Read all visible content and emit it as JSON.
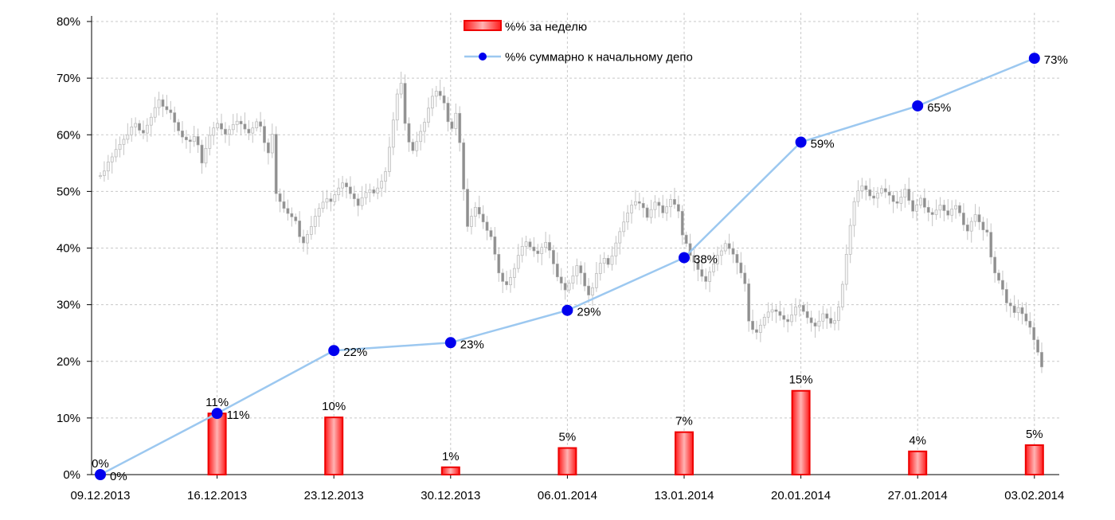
{
  "chart_data": {
    "type": "bar+line",
    "categories": [
      "09.12.2013",
      "16.12.2013",
      "23.12.2013",
      "30.12.2013",
      "06.01.2014",
      "13.01.2014",
      "20.01.2014",
      "27.01.2014",
      "03.02.2014"
    ],
    "ylim": [
      0,
      80
    ],
    "yticks": [
      0,
      10,
      20,
      30,
      40,
      50,
      60,
      70,
      80
    ],
    "ytick_labels": [
      "0%",
      "10%",
      "20%",
      "30%",
      "40%",
      "50%",
      "60%",
      "70%",
      "80%"
    ],
    "grid": true,
    "legend_position": "top-center",
    "series": [
      {
        "name": "%% за неделю",
        "type": "bar",
        "color": "#ff0000",
        "values": [
          0,
          11,
          10,
          1,
          5,
          7,
          15,
          4,
          5
        ],
        "plot_values": [
          0,
          10.8,
          10.1,
          1.3,
          4.7,
          7.5,
          14.8,
          4.1,
          5.2
        ],
        "labels": [
          "0%",
          "11%",
          "10%",
          "1%",
          "5%",
          "7%",
          "15%",
          "4%",
          "5%"
        ]
      },
      {
        "name": "%% суммарно к начальному депо",
        "type": "line",
        "color": "#0000ee",
        "line_color": "#9cc8f0",
        "values": [
          0,
          11,
          22,
          23,
          29,
          38,
          59,
          65,
          73
        ],
        "plot_values": [
          0,
          10.8,
          21.9,
          23.3,
          29.0,
          38.3,
          58.7,
          65.1,
          73.5
        ],
        "labels": [
          "0%",
          "11%",
          "22%",
          "23%",
          "29%",
          "38%",
          "59%",
          "65%",
          "73%"
        ]
      }
    ],
    "background_candles": {
      "description_free": true,
      "closes": [
        52.8,
        53.6,
        55.2,
        56.1,
        57.4,
        58.3,
        59.2,
        60.0,
        61.4,
        62.0,
        60.8,
        60.3,
        61.7,
        63.1,
        64.8,
        66.2,
        65.0,
        64.4,
        63.9,
        62.2,
        60.7,
        59.6,
        59.1,
        58.8,
        59.7,
        58.2,
        55.0,
        57.6,
        59.9,
        61.2,
        62.0,
        61.0,
        60.1,
        60.9,
        61.8,
        62.4,
        61.9,
        61.0,
        60.3,
        61.2,
        62.3,
        61.5,
        58.6,
        56.8,
        60.1,
        49.6,
        48.2,
        47.0,
        46.1,
        45.5,
        44.8,
        42.0,
        40.9,
        42.4,
        43.8,
        45.6,
        47.0,
        48.1,
        48.7,
        48.2,
        49.4,
        50.6,
        51.5,
        50.8,
        49.6,
        48.7,
        47.5,
        48.9,
        49.8,
        50.3,
        49.7,
        50.6,
        51.8,
        53.5,
        57.8,
        62.6,
        67.2,
        69.1,
        62.0,
        58.7,
        57.2,
        58.8,
        60.6,
        62.2,
        64.7,
        66.8,
        67.7,
        66.9,
        65.6,
        62.3,
        61.1,
        63.8,
        58.6,
        50.4,
        43.8,
        45.6,
        47.2,
        46.0,
        44.6,
        43.1,
        42.0,
        38.9,
        35.6,
        34.1,
        33.5,
        34.8,
        36.4,
        38.7,
        40.3,
        41.1,
        40.2,
        39.5,
        39.0,
        40.1,
        41.0,
        39.6,
        37.2,
        34.9,
        33.8,
        32.6,
        33.8,
        35.1,
        36.9,
        35.6,
        33.3,
        31.7,
        33.0,
        35.5,
        37.3,
        38.2,
        37.1,
        38.6,
        40.9,
        42.9,
        44.6,
        46.2,
        47.6,
        48.2,
        47.9,
        47.1,
        45.4,
        46.8,
        48.1,
        47.5,
        46.2,
        47.3,
        48.6,
        47.7,
        46.5,
        42.3,
        40.8,
        38.7,
        37.5,
        36.2,
        35.0,
        34.1,
        35.8,
        37.2,
        38.7,
        39.5,
        40.8,
        39.9,
        38.9,
        37.4,
        35.6,
        33.7,
        27.1,
        25.6,
        25.1,
        26.4,
        27.8,
        28.7,
        29.1,
        28.8,
        28.1,
        27.4,
        27.0,
        28.2,
        29.6,
        29.9,
        28.8,
        27.7,
        26.8,
        26.2,
        27.1,
        28.4,
        27.6,
        26.7,
        27.2,
        29.6,
        33.6,
        38.9,
        44.0,
        48.2,
        50.1,
        51.0,
        50.3,
        49.2,
        48.8,
        49.7,
        50.5,
        49.9,
        49.3,
        48.2,
        47.9,
        49.0,
        50.4,
        48.4,
        46.5,
        47.6,
        48.8,
        47.2,
        46.3,
        45.9,
        46.7,
        47.6,
        46.6,
        45.8,
        46.9,
        47.5,
        46.2,
        44.1,
        43.0,
        44.7,
        45.9,
        44.6,
        43.2,
        42.8,
        38.4,
        35.6,
        34.3,
        32.7,
        30.3,
        29.8,
        28.6,
        29.5,
        28.4,
        27.1,
        26.0,
        23.8,
        21.6,
        19.0
      ]
    }
  },
  "legend": {
    "bar_label": "%% за неделю",
    "line_label": "%% суммарно к начальному депо"
  }
}
